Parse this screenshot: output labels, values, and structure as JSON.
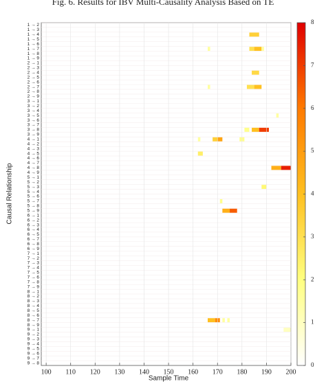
{
  "chart_data": {
    "type": "heatmap",
    "title": "Fig. 6.  Results for IBV Multi-Causality Analysis Based on TE",
    "x_label": "Sample Time",
    "y_label": "Causal Relationship",
    "xlim": [
      98,
      200
    ],
    "xticks": [
      100,
      110,
      120,
      130,
      140,
      150,
      160,
      170,
      180,
      190,
      200
    ],
    "clim": [
      0,
      8
    ],
    "cticks": [
      0,
      1,
      2,
      3,
      4,
      5,
      6,
      7,
      8
    ],
    "colorscale": [
      "#ffffff",
      "#ffff80",
      "#ffc020",
      "#ff7a00",
      "#e00000"
    ],
    "categories": [
      "1 → 2",
      "1 → 3",
      "1 → 4",
      "1 → 5",
      "1 → 6",
      "1 → 7",
      "1 → 8",
      "1 → 9",
      "2 → 1",
      "2 → 3",
      "2 → 4",
      "2 → 5",
      "2 → 6",
      "2 → 7",
      "2 → 8",
      "2 → 9",
      "3 → 1",
      "3 → 2",
      "3 → 4",
      "3 → 5",
      "3 → 6",
      "3 → 7",
      "3 → 8",
      "3 → 9",
      "4 → 1",
      "4 → 2",
      "4 → 3",
      "4 → 5",
      "4 → 6",
      "4 → 7",
      "4 → 8",
      "4 → 9",
      "5 → 1",
      "5 → 2",
      "5 → 3",
      "5 → 4",
      "5 → 6",
      "5 → 7",
      "5 → 8",
      "5 → 9",
      "6 → 1",
      "6 → 2",
      "6 → 3",
      "6 → 4",
      "6 → 5",
      "6 → 7",
      "6 → 8",
      "6 → 9",
      "7 → 1",
      "7 → 2",
      "7 → 3",
      "7 → 4",
      "7 → 5",
      "7 → 6",
      "7 → 8",
      "7 → 9",
      "8 → 1",
      "8 → 2",
      "8 → 3",
      "8 → 4",
      "8 → 5",
      "8 → 6",
      "8 → 7",
      "8 → 9",
      "9 → 1",
      "9 → 2",
      "9 → 3",
      "9 → 4",
      "9 → 5",
      "9 → 6",
      "9 → 7",
      "9 → 8"
    ],
    "cells": [
      {
        "row": "1 → 4",
        "x0": 183,
        "x1": 187,
        "value": 3.5
      },
      {
        "row": "1 → 7",
        "x0": 166,
        "x1": 167,
        "value": 1.5
      },
      {
        "row": "1 → 7",
        "x0": 183,
        "x1": 185,
        "value": 3
      },
      {
        "row": "1 → 7",
        "x0": 185,
        "x1": 188,
        "value": 4
      },
      {
        "row": "1 → 7",
        "x0": 188,
        "x1": 189,
        "value": 1.5
      },
      {
        "row": "2 → 4",
        "x0": 184,
        "x1": 187,
        "value": 3.2
      },
      {
        "row": "2 → 7",
        "x0": 166,
        "x1": 167,
        "value": 1.5
      },
      {
        "row": "2 → 7",
        "x0": 182,
        "x1": 185,
        "value": 3
      },
      {
        "row": "2 → 7",
        "x0": 185,
        "x1": 188,
        "value": 4
      },
      {
        "row": "3 → 5",
        "x0": 194,
        "x1": 195,
        "value": 1.5
      },
      {
        "row": "3 → 8",
        "x0": 181,
        "x1": 183,
        "value": 1.8
      },
      {
        "row": "3 → 8",
        "x0": 184,
        "x1": 187,
        "value": 4
      },
      {
        "row": "3 → 8",
        "x0": 187,
        "x1": 191,
        "value": 7
      },
      {
        "row": "4 → 1",
        "x0": 162,
        "x1": 163,
        "value": 1.5
      },
      {
        "row": "4 → 1",
        "x0": 168,
        "x1": 170,
        "value": 3.5
      },
      {
        "row": "4 → 1",
        "x0": 170,
        "x1": 172,
        "value": 4.8
      },
      {
        "row": "4 → 1",
        "x0": 179,
        "x1": 181,
        "value": 1.8
      },
      {
        "row": "4 → 5",
        "x0": 162,
        "x1": 164,
        "value": 2.5
      },
      {
        "row": "4 → 8",
        "x0": 192,
        "x1": 196,
        "value": 4.5
      },
      {
        "row": "4 → 8",
        "x0": 196,
        "x1": 200,
        "value": 7.5
      },
      {
        "row": "5 → 3",
        "x0": 188,
        "x1": 190,
        "value": 2.2
      },
      {
        "row": "5 → 7",
        "x0": 171,
        "x1": 172,
        "value": 1.8
      },
      {
        "row": "5 → 9",
        "x0": 172,
        "x1": 175,
        "value": 4.5
      },
      {
        "row": "5 → 9",
        "x0": 175,
        "x1": 178,
        "value": 6.5
      },
      {
        "row": "8 → 7",
        "x0": 166,
        "x1": 169,
        "value": 4
      },
      {
        "row": "8 → 7",
        "x0": 169,
        "x1": 171,
        "value": 5.5
      },
      {
        "row": "8 → 7",
        "x0": 172,
        "x1": 173,
        "value": 1.5
      },
      {
        "row": "8 → 7",
        "x0": 174,
        "x1": 175,
        "value": 1.5
      },
      {
        "row": "9 → 1",
        "x0": 197,
        "x1": 200,
        "value": 1
      }
    ]
  }
}
